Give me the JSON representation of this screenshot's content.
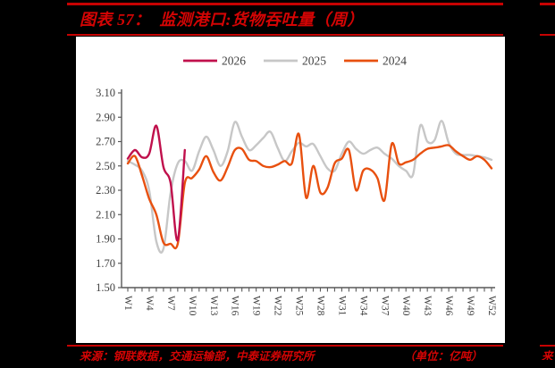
{
  "figure": {
    "title": "图表 57：  监测港口:货物吞吐量（周）",
    "source": "来源：钢联数据，交通运输部，中泰证券研究所",
    "unit": "（单位：亿吨）",
    "edge_fragment": "来源",
    "accent_red": "#D40404"
  },
  "chart_data": {
    "type": "line",
    "title": "监测港口:货物吞吐量（周）",
    "unit_label": "亿吨",
    "weeks": 52,
    "ylim": [
      1.5,
      3.1
    ],
    "y_tick_labels": [
      "3.10",
      "2.90",
      "2.70",
      "2.50",
      "2.30",
      "2.10",
      "1.90",
      "1.70",
      "1.50"
    ],
    "x_tick_labels": [
      "W1",
      "W4",
      "W7",
      "W10",
      "W13",
      "W16",
      "W19",
      "W22",
      "W25",
      "W28",
      "W31",
      "W34",
      "W37",
      "W40",
      "W43",
      "W46",
      "W49",
      "W52"
    ],
    "grid": false,
    "legend_position": "top",
    "axis_color": "#595959",
    "label_color": "#3F3F3F",
    "series": [
      {
        "name": "2026",
        "color": "#C0104C",
        "start_week": 1,
        "values": [
          2.56,
          2.63,
          2.57,
          2.6,
          2.83,
          2.49,
          2.36,
          1.89,
          2.63
        ]
      },
      {
        "name": "2025",
        "color": "#C7C7C7",
        "start_week": 1,
        "values": [
          2.54,
          2.51,
          2.46,
          2.3,
          1.88,
          1.82,
          2.28,
          2.52,
          2.54,
          2.46,
          2.62,
          2.74,
          2.63,
          2.5,
          2.62,
          2.86,
          2.74,
          2.63,
          2.67,
          2.73,
          2.78,
          2.65,
          2.54,
          2.62,
          2.69,
          2.66,
          2.68,
          2.58,
          2.48,
          2.46,
          2.6,
          2.7,
          2.64,
          2.6,
          2.63,
          2.65,
          2.6,
          2.56,
          2.5,
          2.46,
          2.43,
          2.83,
          2.7,
          2.71,
          2.87,
          2.69,
          2.6,
          2.59,
          2.59,
          2.58,
          2.57,
          2.55
        ]
      },
      {
        "name": "2024",
        "color": "#E8500F",
        "start_week": 1,
        "values": [
          2.52,
          2.58,
          2.42,
          2.23,
          2.1,
          1.87,
          1.86,
          1.86,
          2.36,
          2.4,
          2.47,
          2.58,
          2.45,
          2.38,
          2.49,
          2.63,
          2.64,
          2.55,
          2.54,
          2.5,
          2.49,
          2.51,
          2.54,
          2.52,
          2.76,
          2.24,
          2.5,
          2.28,
          2.32,
          2.52,
          2.56,
          2.63,
          2.3,
          2.46,
          2.47,
          2.4,
          2.22,
          2.68,
          2.52,
          2.53,
          2.55,
          2.6,
          2.64,
          2.65,
          2.66,
          2.67,
          2.62,
          2.58,
          2.55,
          2.58,
          2.55,
          2.48
        ]
      }
    ]
  }
}
